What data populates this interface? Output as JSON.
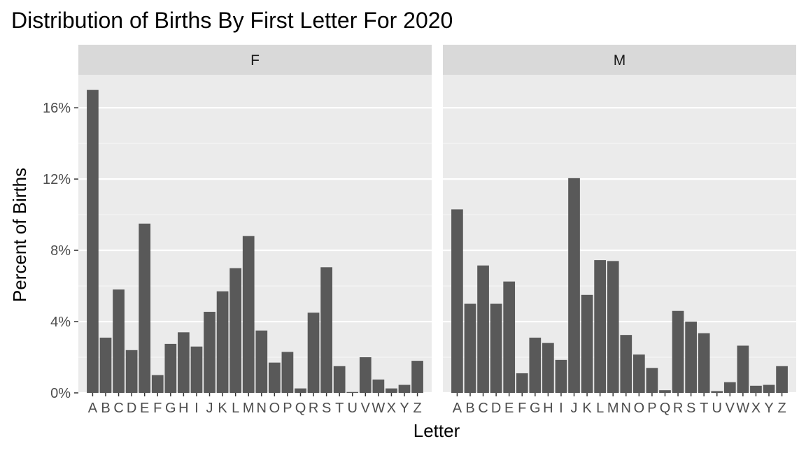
{
  "chart_data": {
    "type": "bar",
    "title": "Distribution of Births By First Letter For 2020",
    "xlabel": "Letter",
    "ylabel": "Percent of Births",
    "ylim": [
      0,
      17
    ],
    "yticks": [
      0,
      4,
      8,
      12,
      16
    ],
    "ytick_labels": [
      "0%",
      "4%",
      "8%",
      "12%",
      "16%"
    ],
    "grid": true,
    "categories": [
      "A",
      "B",
      "C",
      "D",
      "E",
      "F",
      "G",
      "H",
      "I",
      "J",
      "K",
      "L",
      "M",
      "N",
      "O",
      "P",
      "Q",
      "R",
      "S",
      "T",
      "U",
      "V",
      "W",
      "X",
      "Y",
      "Z"
    ],
    "panels": [
      {
        "name": "F",
        "values": [
          17.0,
          3.1,
          5.8,
          2.4,
          9.5,
          1.0,
          2.75,
          3.4,
          2.6,
          4.55,
          5.7,
          7.0,
          8.8,
          3.5,
          1.7,
          2.3,
          0.25,
          4.5,
          7.05,
          1.5,
          0.05,
          2.0,
          0.75,
          0.25,
          0.45,
          1.8
        ]
      },
      {
        "name": "M",
        "values": [
          10.3,
          5.0,
          7.15,
          5.0,
          6.25,
          1.1,
          3.1,
          2.8,
          1.85,
          12.05,
          5.5,
          7.45,
          7.4,
          3.25,
          2.15,
          1.4,
          0.15,
          4.6,
          4.0,
          3.35,
          0.1,
          0.6,
          2.65,
          0.4,
          0.45,
          1.5
        ]
      }
    ]
  }
}
